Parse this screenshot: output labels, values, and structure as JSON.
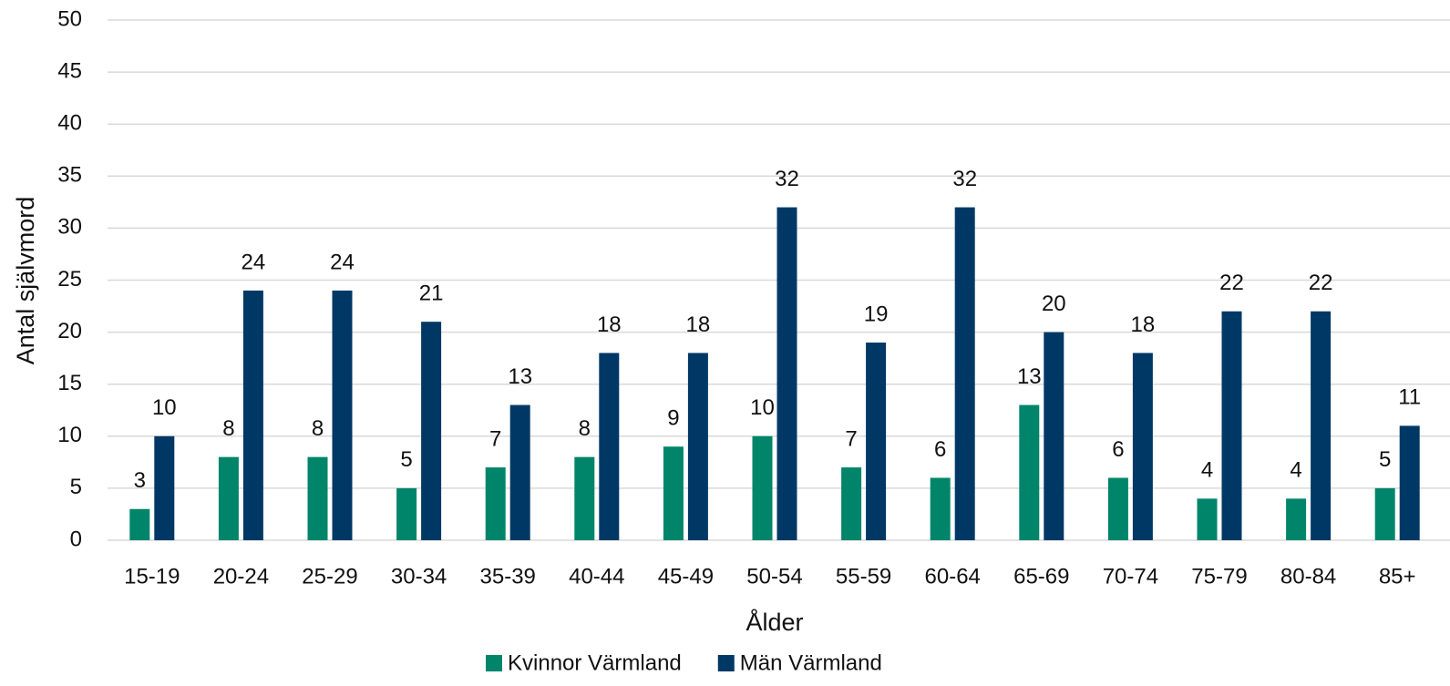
{
  "chart_data": {
    "type": "bar",
    "y_label": "Antal självmord",
    "x_label": "Ålder",
    "categories": [
      "15-19",
      "20-24",
      "25-29",
      "30-34",
      "35-39",
      "40-44",
      "45-49",
      "50-54",
      "55-59",
      "60-64",
      "65-69",
      "70-74",
      "75-79",
      "80-84",
      "85+"
    ],
    "series": [
      {
        "name": "Kvinnor Värmland",
        "color": "#00856a",
        "values": [
          3,
          8,
          8,
          5,
          7,
          8,
          9,
          10,
          7,
          6,
          13,
          6,
          4,
          4,
          5
        ]
      },
      {
        "name": "Män Värmland",
        "color": "#003865",
        "values": [
          10,
          24,
          24,
          21,
          13,
          18,
          18,
          32,
          19,
          32,
          20,
          18,
          22,
          22,
          11
        ]
      }
    ],
    "ylim": [
      0,
      50
    ],
    "yticks": [
      0,
      5,
      10,
      15,
      20,
      25,
      30,
      35,
      40,
      45,
      50
    ],
    "grid": true,
    "legend": "bottom"
  }
}
